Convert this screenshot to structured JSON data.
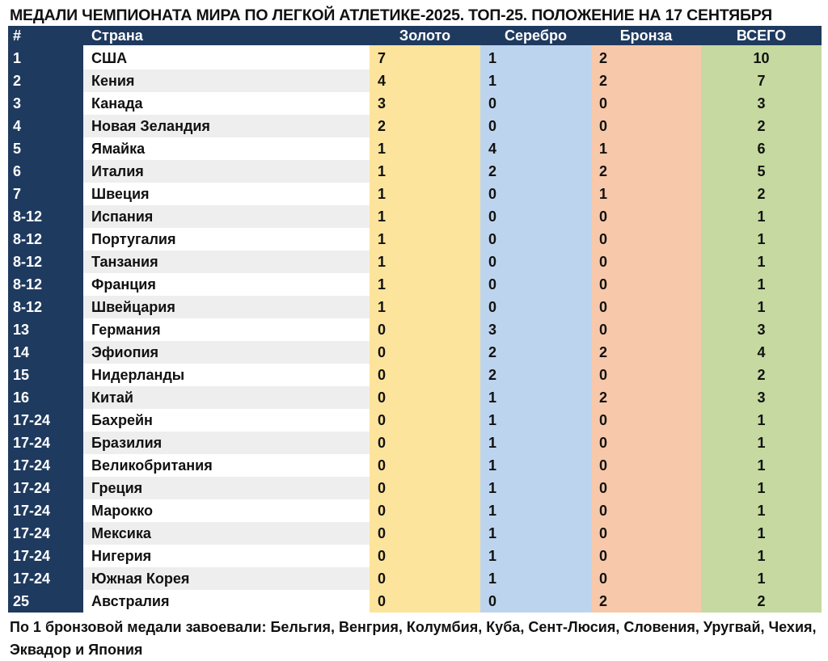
{
  "title": "МЕДАЛИ ЧЕМПИОНАТА МИРА ПО ЛЕГКОЙ АТЛЕТИКЕ-2025. ТОП-25. ПОЛОЖЕНИЕ НА 17 СЕНТЯБРЯ",
  "footnote": "По 1 бронзовой медали завоевали: Бельгия, Венгрия, Колумбия, Куба, Сент-Люсия, Словения, Уругвай, Чехия, Эквадор и Япония",
  "colors": {
    "header": "#1f3a5f",
    "rank_column": "#1f3a5f",
    "gold": "#fde49c",
    "silver": "#bdd4ee",
    "bronze": "#f7c8a9",
    "total": "#c6d9a0",
    "country_odd": "#ffffff",
    "country_even": "#eeeeee"
  },
  "chart_data": {
    "type": "table",
    "title": "МЕДАЛИ ЧЕМПИОНАТА МИРА ПО ЛЕГКОЙ АТЛЕТИКЕ-2025. ТОП-25. ПОЛОЖЕНИЕ НА 17 СЕНТЯБРЯ",
    "columns": [
      "#",
      "Страна",
      "Золото",
      "Серебро",
      "Бронза",
      "ВСЕГО"
    ],
    "rows": [
      [
        "1",
        "США",
        "7",
        "1",
        "2",
        "10"
      ],
      [
        "2",
        "Кения",
        "4",
        "1",
        "2",
        "7"
      ],
      [
        "3",
        "Канада",
        "3",
        "0",
        "0",
        "3"
      ],
      [
        "4",
        "Новая Зеландия",
        "2",
        "0",
        "0",
        "2"
      ],
      [
        "5",
        "Ямайка",
        "1",
        "4",
        "1",
        "6"
      ],
      [
        "6",
        "Италия",
        "1",
        "2",
        "2",
        "5"
      ],
      [
        "7",
        "Швеция",
        "1",
        "0",
        "1",
        "2"
      ],
      [
        "8-12",
        "Испания",
        "1",
        "0",
        "0",
        "1"
      ],
      [
        "8-12",
        "Португалия",
        "1",
        "0",
        "0",
        "1"
      ],
      [
        "8-12",
        "Танзания",
        "1",
        "0",
        "0",
        "1"
      ],
      [
        "8-12",
        "Франция",
        "1",
        "0",
        "0",
        "1"
      ],
      [
        "8-12",
        "Швейцария",
        "1",
        "0",
        "0",
        "1"
      ],
      [
        "13",
        "Германия",
        "0",
        "3",
        "0",
        "3"
      ],
      [
        "14",
        "Эфиопия",
        "0",
        "2",
        "2",
        "4"
      ],
      [
        "15",
        "Нидерланды",
        "0",
        "2",
        "0",
        "2"
      ],
      [
        "16",
        "Китай",
        "0",
        "1",
        "2",
        "3"
      ],
      [
        "17-24",
        "Бахрейн",
        "0",
        "1",
        "0",
        "1"
      ],
      [
        "17-24",
        "Бразилия",
        "0",
        "1",
        "0",
        "1"
      ],
      [
        "17-24",
        "Великобритания",
        "0",
        "1",
        "0",
        "1"
      ],
      [
        "17-24",
        "Греция",
        "0",
        "1",
        "0",
        "1"
      ],
      [
        "17-24",
        "Марокко",
        "0",
        "1",
        "0",
        "1"
      ],
      [
        "17-24",
        "Мексика",
        "0",
        "1",
        "0",
        "1"
      ],
      [
        "17-24",
        "Нигерия",
        "0",
        "1",
        "0",
        "1"
      ],
      [
        "17-24",
        "Южная Корея",
        "0",
        "1",
        "0",
        "1"
      ],
      [
        "25",
        "Австралия",
        "0",
        "0",
        "2",
        "2"
      ]
    ]
  }
}
